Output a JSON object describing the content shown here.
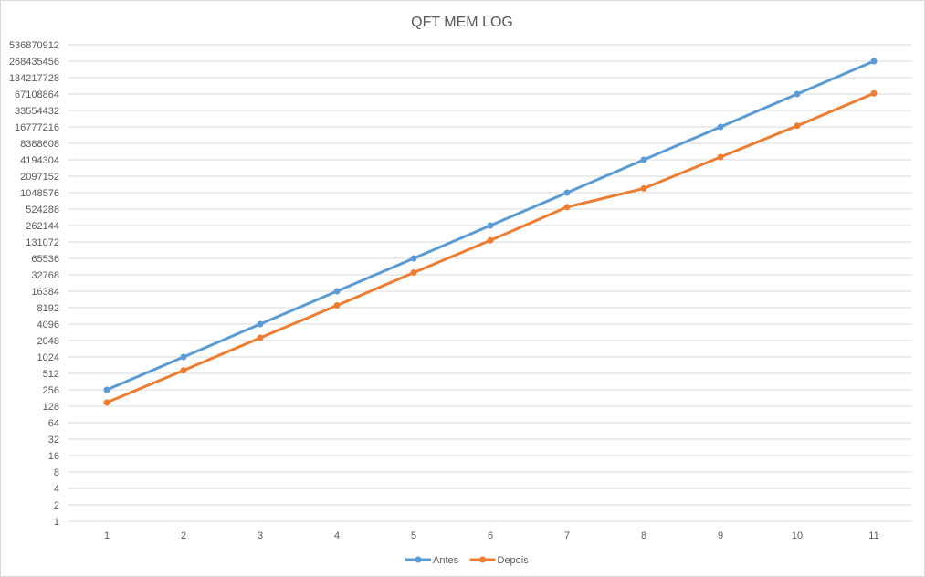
{
  "chart_data": {
    "type": "line",
    "title": "QFT MEM LOG",
    "xlabel": "",
    "ylabel": "",
    "y_scale": "log2",
    "categories": [
      "1",
      "2",
      "3",
      "4",
      "5",
      "6",
      "7",
      "8",
      "9",
      "10",
      "11"
    ],
    "y_ticks": [
      "1",
      "2",
      "4",
      "8",
      "16",
      "32",
      "64",
      "128",
      "256",
      "512",
      "1024",
      "2048",
      "4096",
      "8192",
      "16384",
      "32768",
      "65536",
      "131072",
      "262144",
      "524288",
      "1048576",
      "2097152",
      "4194304",
      "8388608",
      "16777216",
      "33554432",
      "67108864",
      "134217728",
      "268435456",
      "536870912"
    ],
    "ylim": [
      1,
      536870912
    ],
    "grid": true,
    "legend_position": "bottom",
    "series": [
      {
        "name": "Antes",
        "color": "#5B9BD5",
        "values": [
          256,
          1024,
          4096,
          16384,
          65536,
          262144,
          1048576,
          4194304,
          16777216,
          67108864,
          268435456
        ]
      },
      {
        "name": "Depois",
        "color": "#ED7D31",
        "values": [
          150,
          580,
          2300,
          9000,
          36000,
          140000,
          570000,
          1250000,
          4700000,
          17600000,
          69000000
        ]
      }
    ]
  }
}
